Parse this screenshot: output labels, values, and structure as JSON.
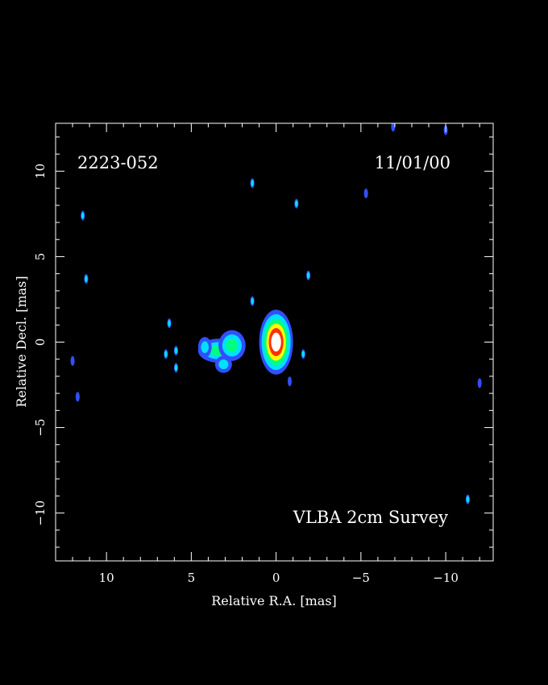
{
  "chart_data": {
    "type": "heatmap",
    "source_name": "2223-052",
    "date": "11/01/00",
    "survey": "VLBA 2cm Survey",
    "xlabel": "Relative R.A. [mas]",
    "ylabel": "Relative Decl. [mas]",
    "xlim": [
      13,
      -12.8
    ],
    "ylim": [
      -12.8,
      12.8
    ],
    "x_ticks": [
      10,
      5,
      0,
      -5,
      -10
    ],
    "y_ticks": [
      10,
      5,
      0,
      -5,
      -10
    ],
    "grid": false,
    "core": {
      "x": 0.0,
      "y": 0.0,
      "semi_x": 1.0,
      "semi_y": 1.9,
      "peak_level": 5
    },
    "jet_blobs": [
      {
        "x": 3.4,
        "y": -0.5,
        "semi_x": 1.2,
        "semi_y": 0.7,
        "peak_level": 2
      },
      {
        "x": 2.6,
        "y": -0.2,
        "semi_x": 0.8,
        "semi_y": 0.9,
        "peak_level": 2
      },
      {
        "x": 4.2,
        "y": -0.3,
        "semi_x": 0.4,
        "semi_y": 0.6,
        "peak_level": 1
      },
      {
        "x": 3.1,
        "y": -1.3,
        "semi_x": 0.5,
        "semi_y": 0.5,
        "peak_level": 1
      }
    ],
    "noise_spots": [
      {
        "x": 1.4,
        "y": 9.3,
        "level": 1
      },
      {
        "x": -1.2,
        "y": 8.1,
        "level": 1
      },
      {
        "x": -5.3,
        "y": 8.7,
        "level": 0
      },
      {
        "x": 11.4,
        "y": 7.4,
        "level": 1
      },
      {
        "x": 11.2,
        "y": 3.7,
        "level": 1
      },
      {
        "x": -1.9,
        "y": 3.9,
        "level": 1
      },
      {
        "x": 1.4,
        "y": 2.4,
        "level": 1
      },
      {
        "x": 6.3,
        "y": 1.1,
        "level": 1
      },
      {
        "x": 6.5,
        "y": -0.7,
        "level": 1
      },
      {
        "x": 5.9,
        "y": -0.5,
        "level": 1
      },
      {
        "x": 5.9,
        "y": -1.5,
        "level": 1
      },
      {
        "x": -1.6,
        "y": -0.7,
        "level": 1
      },
      {
        "x": 12.0,
        "y": -1.1,
        "level": 0
      },
      {
        "x": 11.7,
        "y": -3.2,
        "level": 0
      },
      {
        "x": -0.8,
        "y": -2.3,
        "level": 0
      },
      {
        "x": -12.0,
        "y": -2.4,
        "level": 0
      },
      {
        "x": -11.3,
        "y": -9.2,
        "level": 1
      },
      {
        "x": -6.9,
        "y": 12.6,
        "level": 0
      },
      {
        "x": -10.0,
        "y": 12.4,
        "level": 0
      }
    ],
    "colors": [
      "#1e3cff",
      "#00d8ff",
      "#ffff00",
      "#ff8800",
      "#ff2020",
      "#ffffff"
    ],
    "level_colors": [
      "#3050ff",
      "#00e0ff",
      "#00ff80",
      "#ffff00",
      "#ff3000",
      "#ffffff"
    ]
  }
}
